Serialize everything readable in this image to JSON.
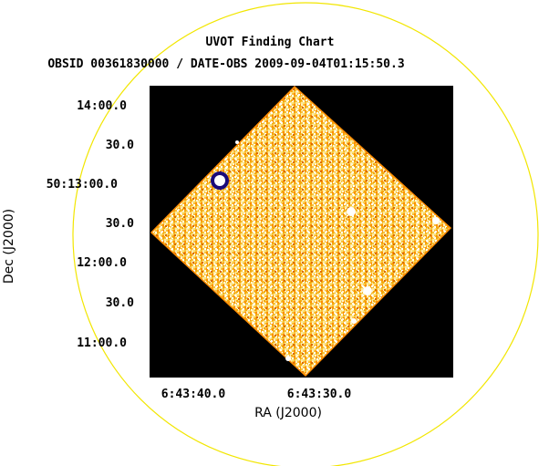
{
  "title": "UVOT Finding Chart",
  "subtitle": "OBSID 00361830000 / DATE-OBS 2009-09-04T01:15:50.3",
  "x_axis": {
    "label": "RA (J2000)",
    "ticks": [
      "6:43:40.0",
      "6:43:30.0"
    ]
  },
  "y_axis": {
    "label": "Dec (J2000)",
    "ticks": [
      "14:00.0",
      "30.0",
      "50:13:00.0",
      "30.0",
      "12:00.0",
      "30.0",
      "11:00.0"
    ]
  },
  "colors": {
    "background": "#000000",
    "field_circle": "#f2e600",
    "image_palette": [
      "#f3a80d",
      "#f8c93a",
      "#fbe27a",
      "#fff2c2",
      "#ffffff",
      "#ff8c00",
      "#d96b00"
    ],
    "sources": "#ffffff",
    "bright_source_ring": "#1a0a7a"
  }
}
